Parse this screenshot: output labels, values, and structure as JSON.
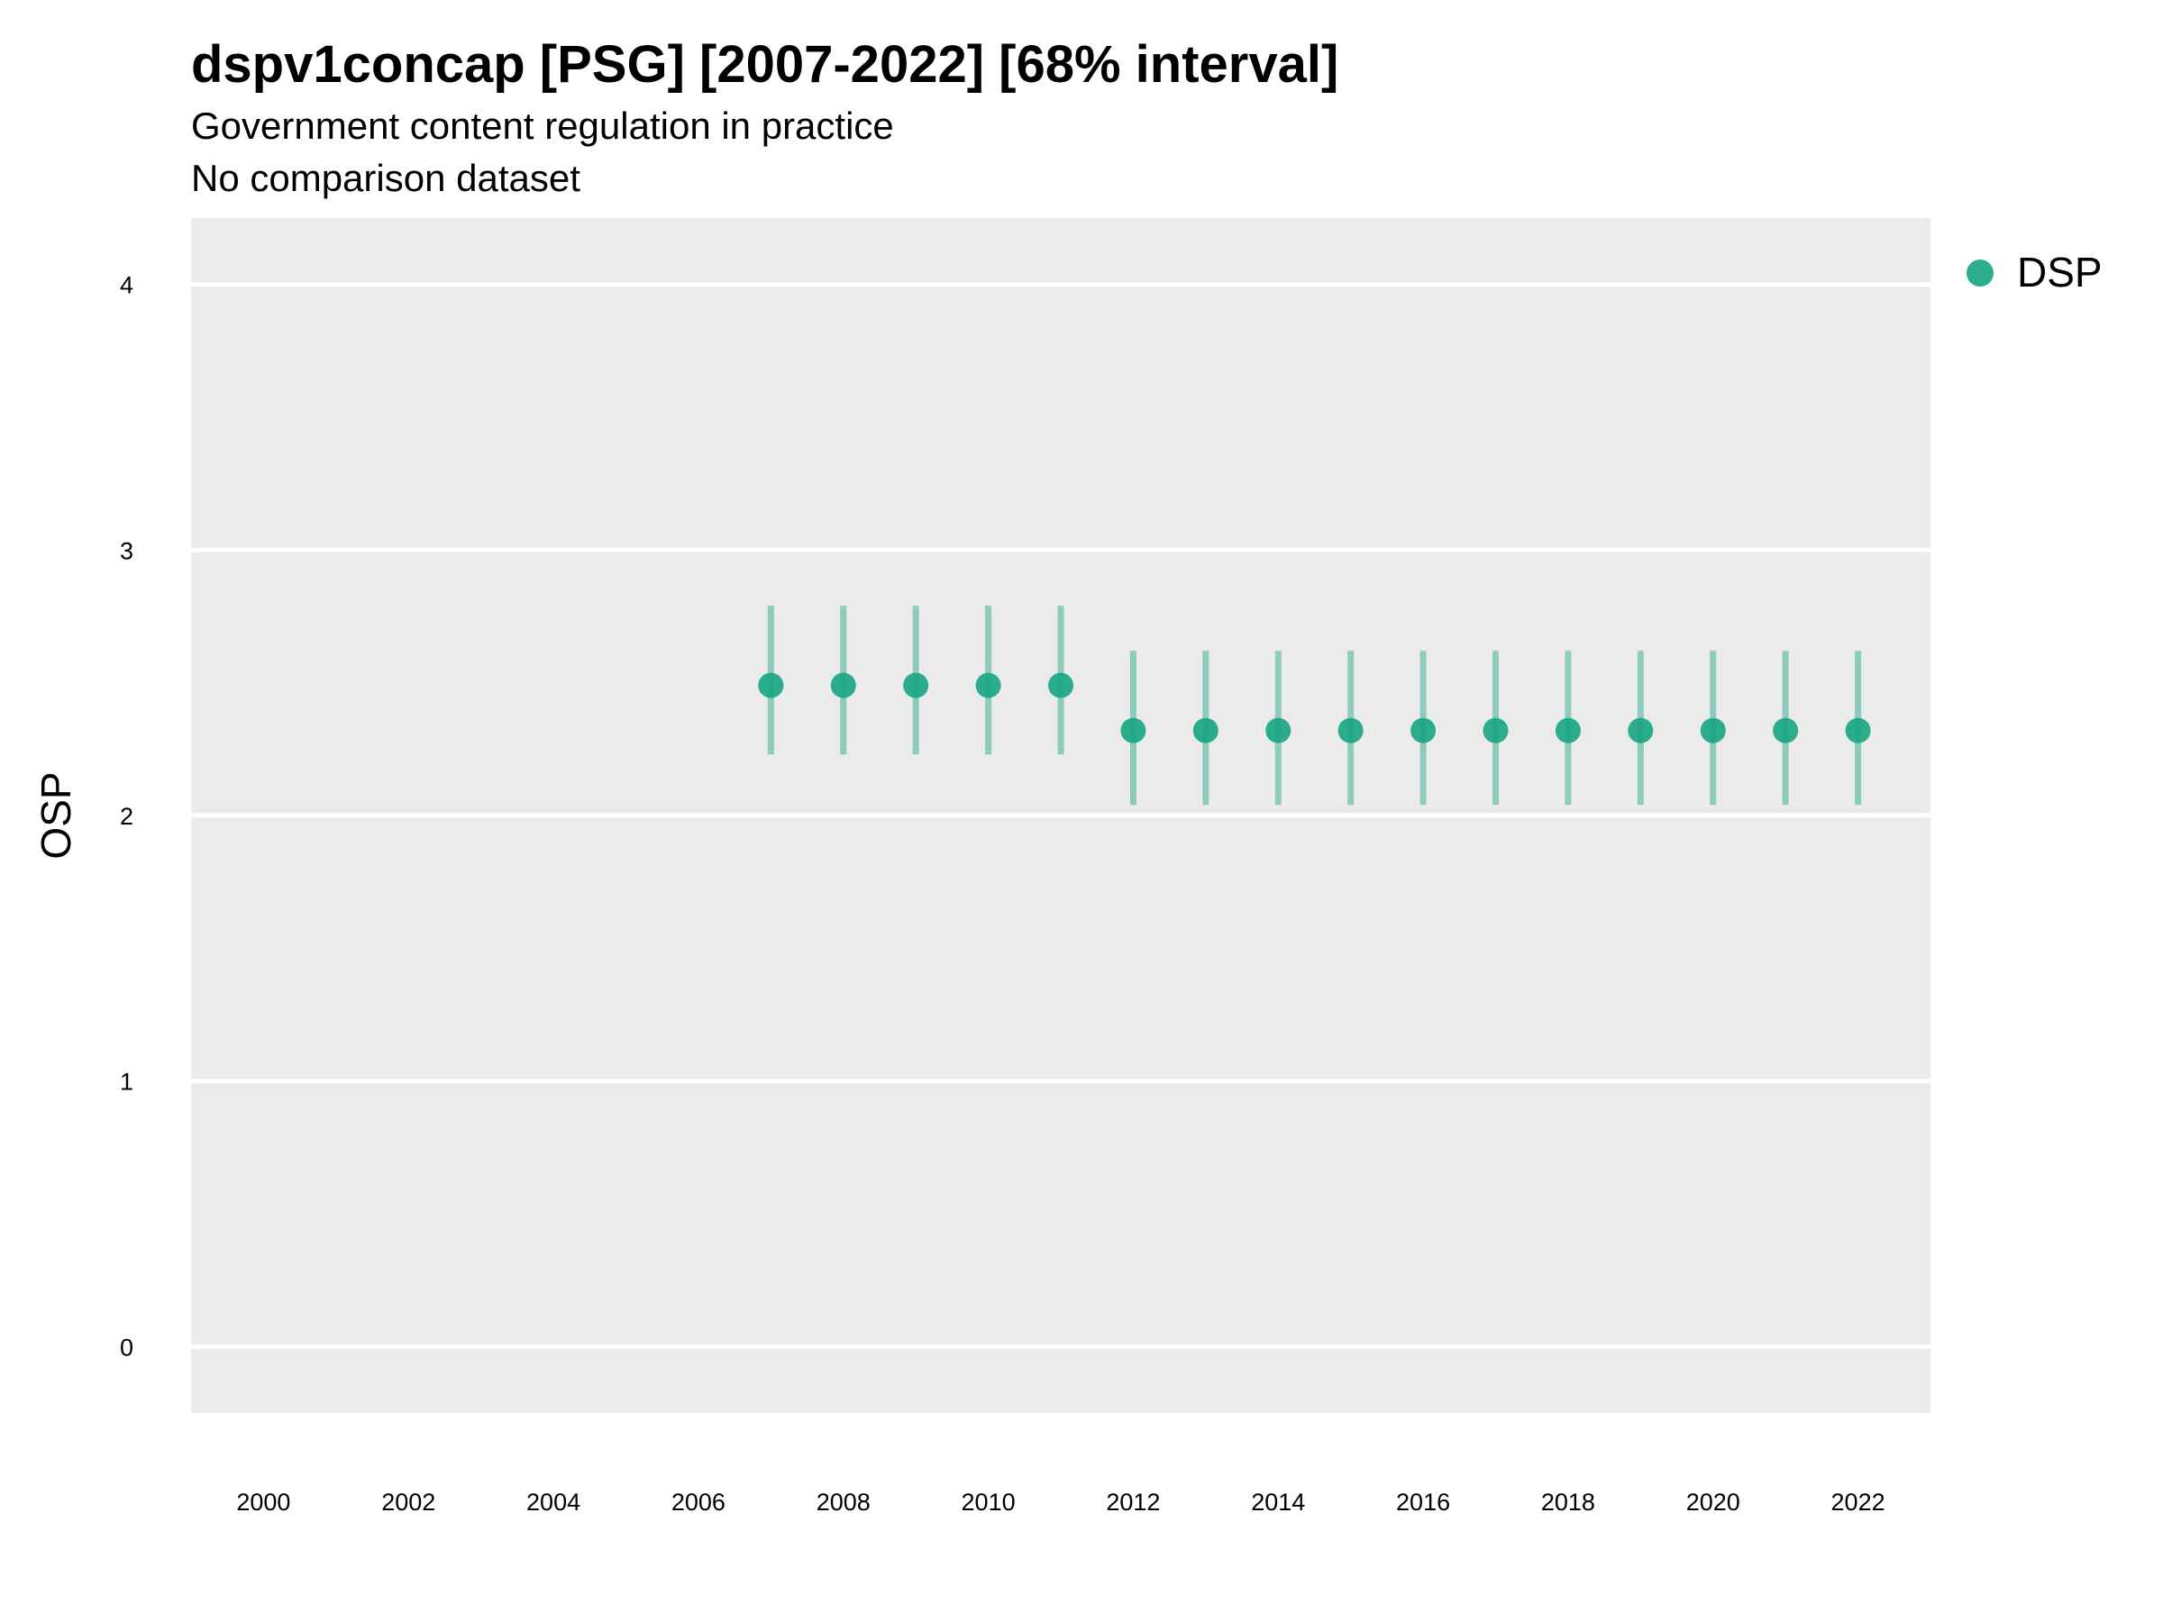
{
  "chart_data": {
    "type": "scatter",
    "title": "dspv1concap [PSG] [2007-2022] [68% interval]",
    "subtitle": "Government content regulation in practice",
    "subtitle2": "No comparison dataset",
    "xlabel": "",
    "ylabel": "OSP",
    "xlim": [
      1999,
      2023
    ],
    "ylim": [
      -0.25,
      4.25
    ],
    "x_ticks": [
      2000,
      2002,
      2004,
      2006,
      2008,
      2010,
      2012,
      2014,
      2016,
      2018,
      2020,
      2022
    ],
    "y_ticks": [
      0,
      1,
      2,
      3,
      4
    ],
    "grid": true,
    "legend_position": "top-right",
    "series": [
      {
        "name": "DSP",
        "color": "#1aa682",
        "points": [
          {
            "x": 2007,
            "y": 2.49,
            "low": 2.23,
            "high": 2.79
          },
          {
            "x": 2008,
            "y": 2.49,
            "low": 2.23,
            "high": 2.79
          },
          {
            "x": 2009,
            "y": 2.49,
            "low": 2.23,
            "high": 2.79
          },
          {
            "x": 2010,
            "y": 2.49,
            "low": 2.23,
            "high": 2.79
          },
          {
            "x": 2011,
            "y": 2.49,
            "low": 2.23,
            "high": 2.79
          },
          {
            "x": 2012,
            "y": 2.32,
            "low": 2.04,
            "high": 2.62
          },
          {
            "x": 2013,
            "y": 2.32,
            "low": 2.04,
            "high": 2.62
          },
          {
            "x": 2014,
            "y": 2.32,
            "low": 2.04,
            "high": 2.62
          },
          {
            "x": 2015,
            "y": 2.32,
            "low": 2.04,
            "high": 2.62
          },
          {
            "x": 2016,
            "y": 2.32,
            "low": 2.04,
            "high": 2.62
          },
          {
            "x": 2017,
            "y": 2.32,
            "low": 2.04,
            "high": 2.62
          },
          {
            "x": 2018,
            "y": 2.32,
            "low": 2.04,
            "high": 2.62
          },
          {
            "x": 2019,
            "y": 2.32,
            "low": 2.04,
            "high": 2.62
          },
          {
            "x": 2020,
            "y": 2.32,
            "low": 2.04,
            "high": 2.62
          },
          {
            "x": 2021,
            "y": 2.32,
            "low": 2.04,
            "high": 2.62
          },
          {
            "x": 2022,
            "y": 2.32,
            "low": 2.04,
            "high": 2.62
          }
        ]
      }
    ],
    "panel_color": "#ebebeb",
    "gridline_color": "#ffffff"
  }
}
